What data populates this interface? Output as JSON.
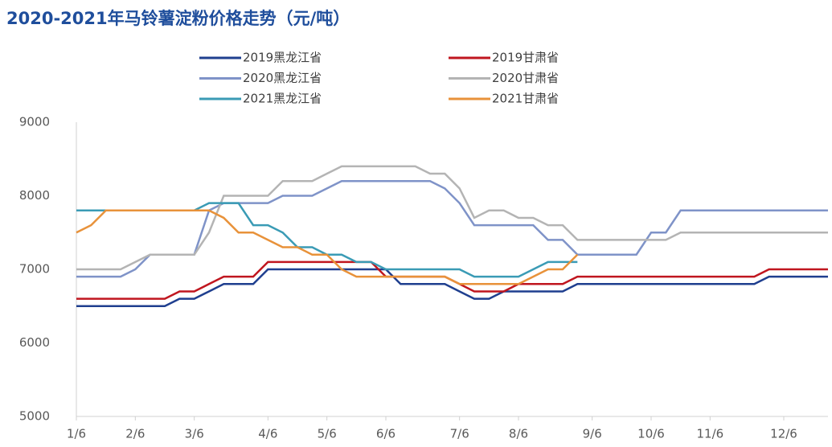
{
  "chart_data": {
    "type": "line",
    "title": "2020-2021年马铃薯淀粉价格走势（元/吨）",
    "categories": [
      "1/6",
      null,
      null,
      null,
      "2/6",
      null,
      null,
      null,
      "3/6",
      null,
      null,
      null,
      null,
      "4/6",
      null,
      null,
      null,
      "5/6",
      null,
      null,
      null,
      "6/6",
      null,
      null,
      null,
      null,
      "7/6",
      null,
      null,
      null,
      "8/6",
      null,
      null,
      null,
      null,
      "9/6",
      null,
      null,
      null,
      "10/6",
      null,
      null,
      null,
      "11/6",
      null,
      null,
      null,
      null,
      "12/6",
      null,
      null,
      null
    ],
    "series": [
      {
        "name": "2019黑龙江省",
        "color": "#1f3f8f",
        "values": [
          6500,
          6500,
          6500,
          6500,
          6500,
          6500,
          6500,
          6600,
          6600,
          6700,
          6800,
          6800,
          6800,
          7000,
          7000,
          7000,
          7000,
          7000,
          7000,
          7000,
          7000,
          7000,
          6800,
          6800,
          6800,
          6800,
          6700,
          6600,
          6600,
          6700,
          6700,
          6700,
          6700,
          6700,
          6800,
          6800,
          6800,
          6800,
          6800,
          6800,
          6800,
          6800,
          6800,
          6800,
          6800,
          6800,
          6800,
          6900,
          6900,
          6900,
          6900,
          6900
        ]
      },
      {
        "name": "2019甘肃省",
        "color": "#c0161f",
        "values": [
          6600,
          6600,
          6600,
          6600,
          6600,
          6600,
          6600,
          6700,
          6700,
          6800,
          6900,
          6900,
          6900,
          7100,
          7100,
          7100,
          7100,
          7100,
          7100,
          7100,
          7100,
          6900,
          6900,
          6900,
          6900,
          6900,
          6800,
          6700,
          6700,
          6700,
          6800,
          6800,
          6800,
          6800,
          6900,
          6900,
          6900,
          6900,
          6900,
          6900,
          6900,
          6900,
          6900,
          6900,
          6900,
          6900,
          6900,
          7000,
          7000,
          7000,
          7000,
          7000
        ]
      },
      {
        "name": "2020黑龙江省",
        "color": "#7f93c8",
        "values": [
          6900,
          6900,
          6900,
          6900,
          7000,
          7200,
          7200,
          7200,
          7200,
          7800,
          7900,
          7900,
          7900,
          7900,
          8000,
          8000,
          8000,
          8100,
          8200,
          8200,
          8200,
          8200,
          8200,
          8200,
          8200,
          8100,
          7900,
          7600,
          7600,
          7600,
          7600,
          7600,
          7400,
          7400,
          7200,
          7200,
          7200,
          7200,
          7200,
          7500,
          7500,
          7800,
          7800,
          7800,
          7800,
          7800,
          7800,
          7800,
          7800,
          7800,
          7800,
          7800
        ]
      },
      {
        "name": "2020甘肃省",
        "color": "#b4b4b4",
        "values": [
          7000,
          7000,
          7000,
          7000,
          7100,
          7200,
          7200,
          7200,
          7200,
          7500,
          8000,
          8000,
          8000,
          8000,
          8200,
          8200,
          8200,
          8300,
          8400,
          8400,
          8400,
          8400,
          8400,
          8400,
          8300,
          8300,
          8100,
          7700,
          7800,
          7800,
          7700,
          7700,
          7600,
          7600,
          7400,
          7400,
          7400,
          7400,
          7400,
          7400,
          7400,
          7500,
          7500,
          7500,
          7500,
          7500,
          7500,
          7500,
          7500,
          7500,
          7500,
          7500
        ]
      },
      {
        "name": "2021黑龙江省",
        "color": "#3a9bb5",
        "values": [
          7800,
          7800,
          7800,
          7800,
          7800,
          7800,
          7800,
          7800,
          7800,
          7900,
          7900,
          7900,
          7600,
          7600,
          7500,
          7300,
          7300,
          7200,
          7200,
          7100,
          7100,
          7000,
          7000,
          7000,
          7000,
          7000,
          7000,
          6900,
          6900,
          6900,
          6900,
          7000,
          7100,
          7100,
          7100,
          null,
          null,
          null,
          null,
          null,
          null,
          null,
          null,
          null,
          null,
          null,
          null,
          null,
          null,
          null,
          null,
          null
        ]
      },
      {
        "name": "2021甘肃省",
        "color": "#e8923a",
        "values": [
          7500,
          7600,
          7800,
          7800,
          7800,
          7800,
          7800,
          7800,
          7800,
          7800,
          7700,
          7500,
          7500,
          7400,
          7300,
          7300,
          7200,
          7200,
          7000,
          6900,
          6900,
          6900,
          6900,
          6900,
          6900,
          6900,
          6800,
          6800,
          6800,
          6800,
          6800,
          6900,
          7000,
          7000,
          7200,
          null,
          null,
          null,
          null,
          null,
          null,
          null,
          null,
          null,
          null,
          null,
          null,
          null,
          null,
          null,
          null,
          null
        ]
      }
    ],
    "ylim": [
      5000,
      9000
    ],
    "yticks": [
      5000,
      6000,
      7000,
      8000,
      9000
    ],
    "grid": false
  }
}
